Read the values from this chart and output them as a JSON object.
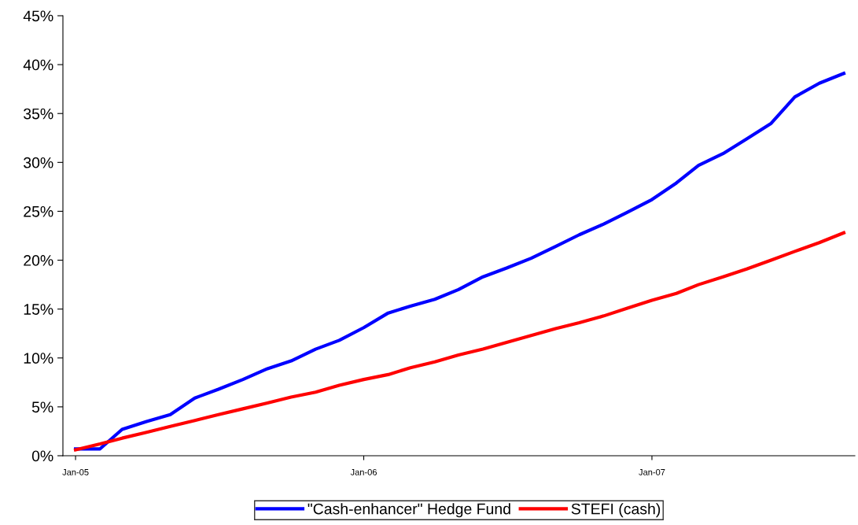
{
  "chart_data": {
    "type": "line",
    "x": [
      "2005-01",
      "2005-02",
      "2005-03",
      "2005-04",
      "2005-05",
      "2005-06",
      "2005-07",
      "2005-08",
      "2005-09",
      "2005-10",
      "2005-11",
      "2005-12",
      "2006-01",
      "2006-02",
      "2006-03",
      "2006-04",
      "2006-05",
      "2006-06",
      "2006-07",
      "2006-08",
      "2006-09",
      "2006-10",
      "2006-11",
      "2006-12",
      "2007-01",
      "2007-02",
      "2007-03",
      "2007-04",
      "2007-05",
      "2007-06",
      "2007-07",
      "2007-08",
      "2007-09"
    ],
    "series": [
      {
        "name": "\"Cash-enhancer\" Hedge Fund",
        "color": "#0000ff",
        "values": [
          0.7,
          0.7,
          2.7,
          3.5,
          4.2,
          5.9,
          6.8,
          7.8,
          8.9,
          9.7,
          10.9,
          11.8,
          13.1,
          14.6,
          15.3,
          16.0,
          17.0,
          18.3,
          19.2,
          20.2,
          21.4,
          22.6,
          23.7,
          24.9,
          26.2,
          27.9,
          29.7,
          30.9,
          32.4,
          34.0,
          36.7,
          38.1,
          39.1
        ]
      },
      {
        "name": "STEFI (cash)",
        "color": "#ff0000",
        "values": [
          0.6,
          1.2,
          1.8,
          2.4,
          3.0,
          3.6,
          4.2,
          4.8,
          5.4,
          6.0,
          6.5,
          7.2,
          7.8,
          8.3,
          9.0,
          9.6,
          10.3,
          10.9,
          11.6,
          12.3,
          13.0,
          13.6,
          14.3,
          15.1,
          15.9,
          16.6,
          17.5,
          18.3,
          19.1,
          20.0,
          20.9,
          21.8,
          22.8
        ]
      }
    ],
    "xlim": [
      "2004-12-16",
      "2007-09-15"
    ],
    "xticks": [
      {
        "value": "2005-01",
        "label": "Jan-05"
      },
      {
        "value": "2006-01",
        "label": "Jan-06"
      },
      {
        "value": "2007-01",
        "label": "Jan-07"
      }
    ],
    "ylim": [
      0,
      45
    ],
    "yticks": [
      {
        "value": 0,
        "label": "0%"
      },
      {
        "value": 5,
        "label": "5%"
      },
      {
        "value": 10,
        "label": "10%"
      },
      {
        "value": 15,
        "label": "15%"
      },
      {
        "value": 20,
        "label": "20%"
      },
      {
        "value": 25,
        "label": "25%"
      },
      {
        "value": 30,
        "label": "30%"
      },
      {
        "value": 35,
        "label": "35%"
      },
      {
        "value": 40,
        "label": "40%"
      },
      {
        "value": 45,
        "label": "45%"
      }
    ],
    "grid": false,
    "legend": "bottom",
    "marker": "none",
    "line_style": "solid"
  }
}
